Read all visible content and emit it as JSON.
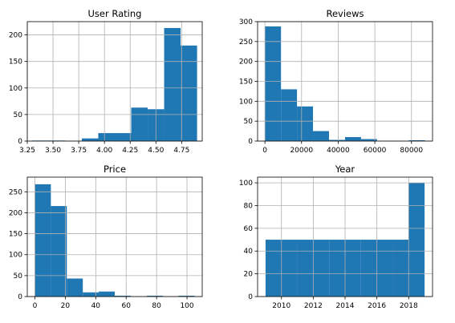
{
  "figure": {
    "bar_color": "#1f77b4",
    "grid_color": "#b0b0b0"
  },
  "chart_data": [
    {
      "type": "bar",
      "title": "User Rating",
      "grid": true,
      "xlim": [
        3.25,
        4.95
      ],
      "ylim": [
        0,
        225
      ],
      "xticks": [
        3.25,
        3.5,
        3.75,
        4.0,
        4.25,
        4.5,
        4.75
      ],
      "xtick_labels": [
        "3.25",
        "3.50",
        "3.75",
        "4.00",
        "4.25",
        "4.50",
        "4.75"
      ],
      "yticks": [
        0,
        50,
        100,
        150,
        200
      ],
      "ytick_labels": [
        "0",
        "50",
        "100",
        "150",
        "200"
      ],
      "bins": [
        {
          "x0": 3.3,
          "x1": 3.46,
          "value": 1
        },
        {
          "x0": 3.46,
          "x1": 3.62,
          "value": 1
        },
        {
          "x0": 3.62,
          "x1": 3.78,
          "value": 0
        },
        {
          "x0": 3.78,
          "x1": 3.94,
          "value": 5
        },
        {
          "x0": 3.94,
          "x1": 4.1,
          "value": 15
        },
        {
          "x0": 4.1,
          "x1": 4.26,
          "value": 15
        },
        {
          "x0": 4.26,
          "x1": 4.42,
          "value": 63
        },
        {
          "x0": 4.42,
          "x1": 4.58,
          "value": 60
        },
        {
          "x0": 4.58,
          "x1": 4.74,
          "value": 213
        },
        {
          "x0": 4.74,
          "x1": 4.9,
          "value": 180
        }
      ]
    },
    {
      "type": "bar",
      "title": "Reviews",
      "grid": true,
      "xlim": [
        -4000,
        91500
      ],
      "ylim": [
        0,
        300
      ],
      "xticks": [
        0,
        20000,
        40000,
        60000,
        80000
      ],
      "xtick_labels": [
        "0",
        "20000",
        "40000",
        "60000",
        "80000"
      ],
      "yticks": [
        0,
        50,
        100,
        150,
        200,
        250,
        300
      ],
      "ytick_labels": [
        "0",
        "50",
        "100",
        "150",
        "200",
        "250",
        "300"
      ],
      "bins": [
        {
          "x0": 37,
          "x1": 8773,
          "value": 288
        },
        {
          "x0": 8773,
          "x1": 17510,
          "value": 130
        },
        {
          "x0": 17510,
          "x1": 26246,
          "value": 87
        },
        {
          "x0": 26246,
          "x1": 34983,
          "value": 25
        },
        {
          "x0": 34983,
          "x1": 43719,
          "value": 3
        },
        {
          "x0": 43719,
          "x1": 52456,
          "value": 10
        },
        {
          "x0": 52456,
          "x1": 61192,
          "value": 5
        },
        {
          "x0": 61192,
          "x1": 69929,
          "value": 0
        },
        {
          "x0": 69929,
          "x1": 78665,
          "value": 0
        },
        {
          "x0": 78665,
          "x1": 87402,
          "value": 2
        }
      ]
    },
    {
      "type": "bar",
      "title": "Price",
      "grid": true,
      "xlim": [
        -5,
        110
      ],
      "ylim": [
        0,
        285
      ],
      "xticks": [
        0,
        20,
        40,
        60,
        80,
        100
      ],
      "xtick_labels": [
        "0",
        "20",
        "40",
        "60",
        "80",
        "100"
      ],
      "yticks": [
        0,
        50,
        100,
        150,
        200,
        250
      ],
      "ytick_labels": [
        "0",
        "50",
        "100",
        "150",
        "200",
        "250"
      ],
      "bins": [
        {
          "x0": 0,
          "x1": 10.5,
          "value": 268
        },
        {
          "x0": 10.5,
          "x1": 21,
          "value": 216
        },
        {
          "x0": 21,
          "x1": 31.5,
          "value": 43
        },
        {
          "x0": 31.5,
          "x1": 42,
          "value": 10
        },
        {
          "x0": 42,
          "x1": 52.5,
          "value": 12
        },
        {
          "x0": 52.5,
          "x1": 63,
          "value": 2
        },
        {
          "x0": 63,
          "x1": 73.5,
          "value": 0
        },
        {
          "x0": 73.5,
          "x1": 84,
          "value": 2
        },
        {
          "x0": 84,
          "x1": 94.5,
          "value": 0
        },
        {
          "x0": 94.5,
          "x1": 105,
          "value": 2
        }
      ]
    },
    {
      "type": "bar",
      "title": "Year",
      "grid": true,
      "xlim": [
        2008.5,
        2019.5
      ],
      "ylim": [
        0,
        105
      ],
      "xticks": [
        2010,
        2012,
        2014,
        2016,
        2018
      ],
      "xtick_labels": [
        "2010",
        "2012",
        "2014",
        "2016",
        "2018"
      ],
      "yticks": [
        0,
        20,
        40,
        60,
        80,
        100
      ],
      "ytick_labels": [
        "0",
        "20",
        "40",
        "60",
        "80",
        "100"
      ],
      "bins": [
        {
          "x0": 2009,
          "x1": 2010,
          "value": 50
        },
        {
          "x0": 2010,
          "x1": 2011,
          "value": 50
        },
        {
          "x0": 2011,
          "x1": 2012,
          "value": 50
        },
        {
          "x0": 2012,
          "x1": 2013,
          "value": 50
        },
        {
          "x0": 2013,
          "x1": 2014,
          "value": 50
        },
        {
          "x0": 2014,
          "x1": 2015,
          "value": 50
        },
        {
          "x0": 2015,
          "x1": 2016,
          "value": 50
        },
        {
          "x0": 2016,
          "x1": 2017,
          "value": 50
        },
        {
          "x0": 2017,
          "x1": 2018,
          "value": 50
        },
        {
          "x0": 2018,
          "x1": 2019,
          "value": 100
        }
      ]
    }
  ]
}
